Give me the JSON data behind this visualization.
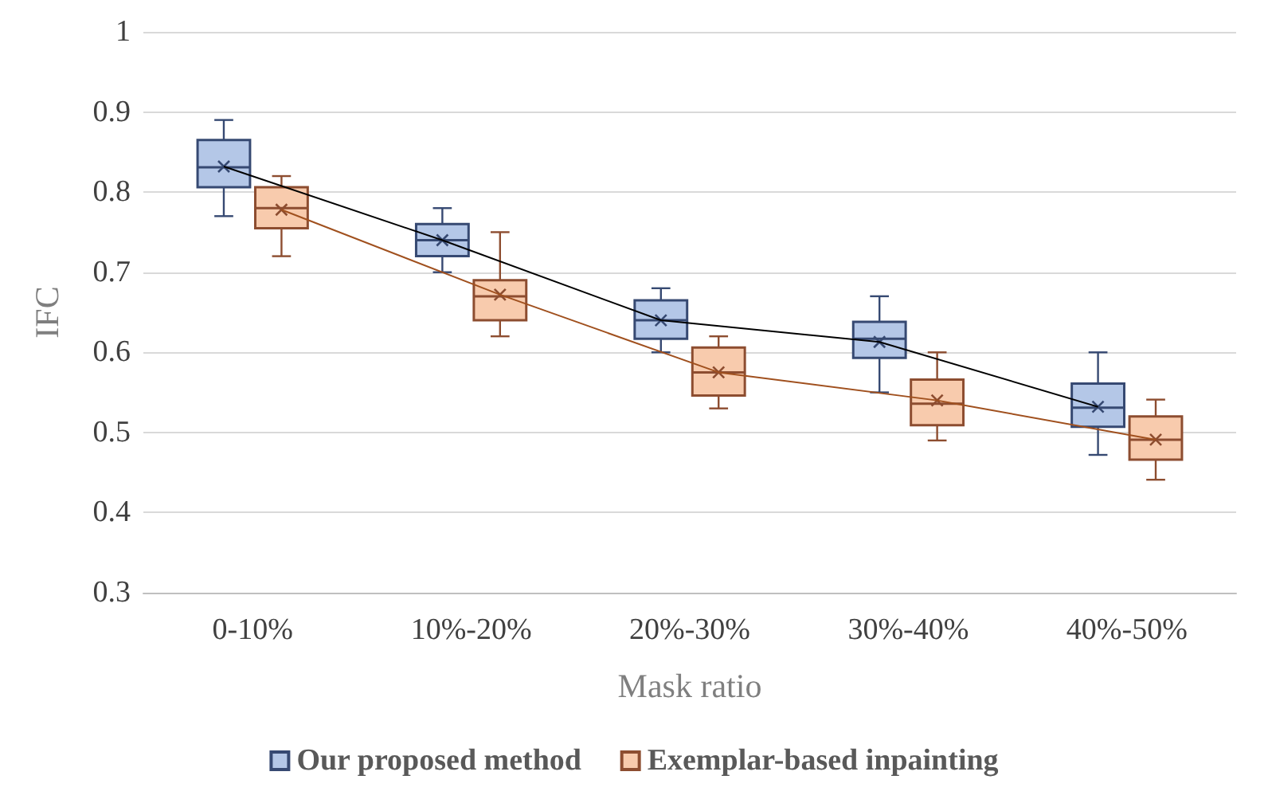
{
  "chart_data": {
    "type": "box",
    "xlabel": "Mask ratio",
    "ylabel": "IFC",
    "categories": [
      "0-10%",
      "10%-20%",
      "20%-30%",
      "30%-40%",
      "40%-50%"
    ],
    "ylim": [
      0.3,
      1
    ],
    "yticks": [
      0.3,
      0.4,
      0.5,
      0.6,
      0.7,
      0.8,
      0.9,
      1
    ],
    "grid": "y",
    "legend": "bottom",
    "marker": "cross",
    "series": [
      {
        "name": "Our proposed method",
        "color": "#b4c7e7",
        "boxes": [
          {
            "low": 0.77,
            "q1": 0.806,
            "median": 0.831,
            "q3": 0.865,
            "high": 0.89,
            "mean": 0.832
          },
          {
            "low": 0.7,
            "q1": 0.72,
            "median": 0.74,
            "q3": 0.76,
            "high": 0.78,
            "mean": 0.74
          },
          {
            "low": 0.6,
            "q1": 0.617,
            "median": 0.64,
            "q3": 0.665,
            "high": 0.68,
            "mean": 0.64
          },
          {
            "low": 0.55,
            "q1": 0.593,
            "median": 0.617,
            "q3": 0.638,
            "high": 0.67,
            "mean": 0.613
          },
          {
            "low": 0.472,
            "q1": 0.507,
            "median": 0.531,
            "q3": 0.561,
            "high": 0.6,
            "mean": 0.532
          }
        ]
      },
      {
        "name": "Exemplar-based inpainting",
        "color": "#f8cbad",
        "boxes": [
          {
            "low": 0.72,
            "q1": 0.755,
            "median": 0.78,
            "q3": 0.806,
            "high": 0.82,
            "mean": 0.778
          },
          {
            "low": 0.62,
            "q1": 0.64,
            "median": 0.67,
            "q3": 0.69,
            "high": 0.75,
            "mean": 0.672
          },
          {
            "low": 0.53,
            "q1": 0.546,
            "median": 0.575,
            "q3": 0.606,
            "high": 0.62,
            "mean": 0.575
          },
          {
            "low": 0.49,
            "q1": 0.509,
            "median": 0.536,
            "q3": 0.566,
            "high": 0.6,
            "mean": 0.54
          },
          {
            "low": 0.441,
            "q1": 0.466,
            "median": 0.491,
            "q3": 0.52,
            "high": 0.541,
            "mean": 0.491
          }
        ]
      },
      {
        "type": "line",
        "marker": "none",
        "color": "#000000",
        "values": [
          0.832,
          0.74,
          0.64,
          0.613,
          0.532
        ]
      },
      {
        "type": "line",
        "marker": "none",
        "color": "#a0501e",
        "values": [
          0.778,
          0.672,
          0.575,
          0.54,
          0.491
        ]
      }
    ]
  }
}
